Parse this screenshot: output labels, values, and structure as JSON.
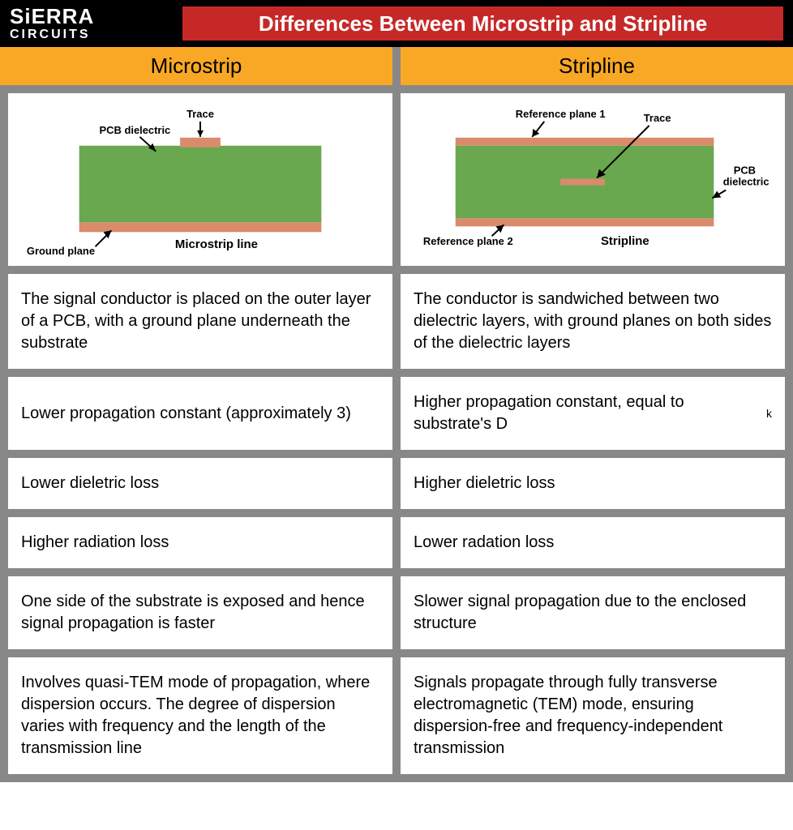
{
  "logo": {
    "top": "SiERRA",
    "bottom": "CIRCUITS"
  },
  "title": "Differences Between Microstrip and Stripline",
  "columns": {
    "left": "Microstrip",
    "right": "Stripline"
  },
  "microstrip_diagram": {
    "labels": {
      "trace": "Trace",
      "pcb_dielectric": "PCB dielectric",
      "ground_plane": "Ground plane",
      "caption": "Microstrip line"
    },
    "colors": {
      "substrate": "#6aa84f",
      "trace": "#d98b6b",
      "ground": "#d98b6b",
      "bg": "#ffffff",
      "text": "#000000"
    }
  },
  "stripline_diagram": {
    "labels": {
      "ref_plane_1": "Reference plane 1",
      "ref_plane_2": "Reference plane 2",
      "trace": "Trace",
      "pcb_dielectric": "PCB\ndielectric",
      "caption": "Stripline"
    },
    "colors": {
      "substrate": "#6aa84f",
      "plane": "#d98b6b",
      "trace": "#d98b6b",
      "bg": "#ffffff",
      "text": "#000000"
    }
  },
  "rows": [
    {
      "left": "The signal conductor is placed on the outer layer of a PCB, with a ground plane underneath the substrate",
      "right": "The conductor is sandwiched between two dielectric layers, with ground planes on both sides of the dielectric layers"
    },
    {
      "left": "Lower propagation constant (approximately 3)",
      "right_html": "Higher propagation constant, equal to substrate's D<sub>k</sub>"
    },
    {
      "left": "Lower dieletric loss",
      "right": "Higher dieletric loss"
    },
    {
      "left": "Higher radiation loss",
      "right": "Lower radation loss"
    },
    {
      "left": "One side of the substrate is exposed and hence signal propagation is faster",
      "right": "Slower signal propagation due to the enclosed structure"
    },
    {
      "left": "Involves quasi-TEM mode of propagation, where dispersion occurs. The degree of dispersion varies with frequency and the length of the transmission line",
      "right": "Signals propagate through fully transverse electromagnetic (TEM) mode, ensuring dispersion-free and frequency-independent transmission"
    }
  ]
}
